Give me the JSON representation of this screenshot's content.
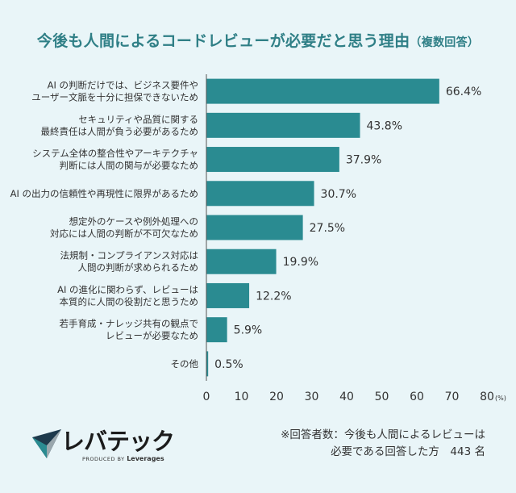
{
  "title": {
    "main": "今後も人間によるコードレビューが必要だと思う理由",
    "sub": "（複数回答）"
  },
  "chart_data": {
    "type": "bar",
    "orientation": "horizontal",
    "categories": [
      [
        "AI の判断だけでは、ビジネス要件や",
        "ユーザー文脈を十分に担保できないため"
      ],
      [
        "セキュリティや品質に関する",
        "最終責任は人間が負う必要があるため"
      ],
      [
        "システム全体の整合性やアーキテクチャ",
        "判断には人間の関与が必要なため"
      ],
      [
        "AI の出力の信頼性や再現性に限界があるため"
      ],
      [
        "想定外のケースや例外処理への",
        "対応には人間の判断が不可欠なため"
      ],
      [
        "法規制・コンプライアンス対応は",
        "人間の判断が求められるため"
      ],
      [
        "AI の進化に関わらず、レビューは",
        "本質的に人間の役割だと思うため"
      ],
      [
        "若手育成・ナレッジ共有の観点で",
        "レビューが必要なため"
      ],
      [
        "その他"
      ]
    ],
    "values": [
      66.4,
      43.8,
      37.9,
      30.7,
      27.5,
      19.9,
      12.2,
      5.9,
      0.5
    ],
    "value_labels": [
      "66.4%",
      "43.8%",
      "37.9%",
      "30.7%",
      "27.5%",
      "19.9%",
      "12.2%",
      "5.9%",
      "0.5%"
    ],
    "xlim": [
      0,
      80
    ],
    "xticks": [
      "0",
      "10",
      "20",
      "30",
      "40",
      "50",
      "60",
      "70",
      "80"
    ],
    "x_unit": "(%)",
    "grid": false,
    "bar_color": "#2a8b91"
  },
  "logo": {
    "name": "レバテック",
    "produced_by": "PRODUCED BY",
    "company": "Leverages"
  },
  "note": {
    "line1": "※回答者数：今後も人間によるレビューは",
    "line2": "必要である回答した方　443 名"
  }
}
